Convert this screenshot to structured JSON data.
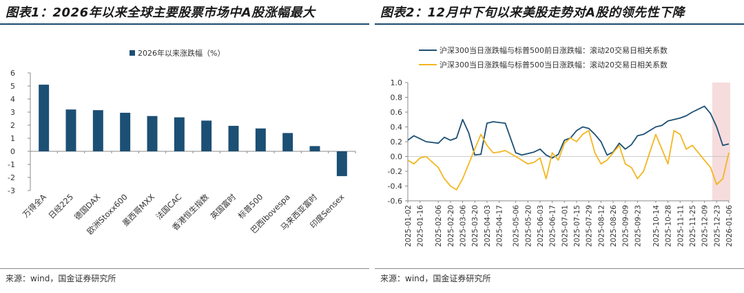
{
  "left": {
    "title": "图表1：2026年以来全球主要股票市场中A股涨幅最大",
    "source": "来源：wind，国金证券研究所",
    "chart_data": {
      "type": "bar",
      "title": "",
      "legend": {
        "label": "2026年以来涨跌幅（%）",
        "placement": "top-center"
      },
      "categories": [
        "万得全A",
        "日经225",
        "德国DAX",
        "欧洲Stoxx600",
        "墨西哥MXX",
        "法国CAC",
        "香港恒生指数",
        "英国富时",
        "标普500",
        "巴西Ibovespa",
        "马来西亚富时",
        "印度Sensex"
      ],
      "series": [
        {
          "name": "2026年以来涨跌幅（%）",
          "color": "#1c4f74",
          "values": [
            5.1,
            3.2,
            3.15,
            2.95,
            2.7,
            2.6,
            2.35,
            1.95,
            1.75,
            1.4,
            0.4,
            -1.9
          ]
        }
      ],
      "ylim": [
        -3,
        6
      ],
      "yticks": [
        "-3",
        "-2",
        "-1",
        "0",
        "1",
        "2",
        "3",
        "4",
        "5",
        "6"
      ],
      "grid": false,
      "xlabel": "",
      "ylabel": ""
    }
  },
  "right": {
    "title": "图表2：12月中下旬以来美股走势对A股的领先性下降",
    "source": "来源：wind，国金证券研究所",
    "chart_data": {
      "type": "line",
      "title": "",
      "legend_placement": "top",
      "ylim": [
        -0.6,
        1.0
      ],
      "yticks": [
        "1.0",
        "0.8",
        "0.6",
        "0.4",
        "0.2",
        "0.0",
        "-0.2",
        "-0.4",
        "-0.6"
      ],
      "xticks": [
        "2025-01-02",
        "2025-01-16",
        "2025-02-06",
        "2025-02-20",
        "2025-03-06",
        "2025-03-20",
        "2025-04-03",
        "2025-04-17",
        "2025-05-06",
        "2025-05-20",
        "2025-06-03",
        "2025-06-17",
        "2025-07-01",
        "2025-07-15",
        "2025-07-29",
        "2025-08-12",
        "2025-08-26",
        "2025-09-09",
        "2025-09-23",
        "2025-10-14",
        "2025-10-28",
        "2025-11-11",
        "2025-11-25",
        "2025-12-09",
        "2025-12-23",
        "2026-01-06"
      ],
      "highlight": {
        "from": "2025-12-18",
        "to": "2026-01-06",
        "color": "#f6dcdc"
      },
      "grid": false,
      "xlabel": "",
      "ylabel": "",
      "series": [
        {
          "name": "沪深300当日涨跌幅与标普500前日涨跌幅：滚动20交易日相关系数",
          "color": "#1c4f74",
          "x": [
            "2025-01-02",
            "2025-01-09",
            "2025-01-16",
            "2025-01-23",
            "2025-02-06",
            "2025-02-13",
            "2025-02-20",
            "2025-02-27",
            "2025-03-06",
            "2025-03-13",
            "2025-03-20",
            "2025-03-27",
            "2025-04-03",
            "2025-04-10",
            "2025-04-17",
            "2025-04-24",
            "2025-05-06",
            "2025-05-13",
            "2025-05-20",
            "2025-05-27",
            "2025-06-03",
            "2025-06-10",
            "2025-06-17",
            "2025-06-24",
            "2025-07-01",
            "2025-07-08",
            "2025-07-15",
            "2025-07-22",
            "2025-07-29",
            "2025-08-05",
            "2025-08-12",
            "2025-08-19",
            "2025-08-26",
            "2025-09-02",
            "2025-09-09",
            "2025-09-16",
            "2025-09-23",
            "2025-09-30",
            "2025-10-14",
            "2025-10-21",
            "2025-10-28",
            "2025-11-04",
            "2025-11-11",
            "2025-11-18",
            "2025-11-25",
            "2025-12-02",
            "2025-12-09",
            "2025-12-16",
            "2025-12-23",
            "2025-12-30",
            "2026-01-06"
          ],
          "values": [
            0.22,
            0.28,
            0.24,
            0.2,
            0.18,
            0.26,
            0.22,
            0.25,
            0.5,
            0.32,
            0.02,
            0.03,
            0.45,
            0.47,
            0.46,
            0.45,
            0.05,
            0.02,
            0.04,
            0.06,
            0.1,
            0.02,
            -0.02,
            0.03,
            0.22,
            0.25,
            0.35,
            0.4,
            0.38,
            0.3,
            0.2,
            0.02,
            0.06,
            0.18,
            0.1,
            0.16,
            0.28,
            0.3,
            0.4,
            0.42,
            0.48,
            0.5,
            0.52,
            0.55,
            0.6,
            0.64,
            0.68,
            0.58,
            0.4,
            0.15,
            0.17
          ]
        },
        {
          "name": "沪深300当日涨跌幅与标普500当日涨跌幅：滚动20交易日相关系数",
          "color": "#f3b61f",
          "x": [
            "2025-01-02",
            "2025-01-09",
            "2025-01-16",
            "2025-01-23",
            "2025-02-06",
            "2025-02-13",
            "2025-02-20",
            "2025-02-27",
            "2025-03-06",
            "2025-03-13",
            "2025-03-20",
            "2025-03-27",
            "2025-04-03",
            "2025-04-10",
            "2025-04-17",
            "2025-04-24",
            "2025-05-06",
            "2025-05-13",
            "2025-05-20",
            "2025-05-27",
            "2025-06-03",
            "2025-06-10",
            "2025-06-17",
            "2025-06-24",
            "2025-07-01",
            "2025-07-08",
            "2025-07-15",
            "2025-07-22",
            "2025-07-29",
            "2025-08-05",
            "2025-08-12",
            "2025-08-19",
            "2025-08-26",
            "2025-09-02",
            "2025-09-09",
            "2025-09-16",
            "2025-09-23",
            "2025-09-30",
            "2025-10-14",
            "2025-10-21",
            "2025-10-28",
            "2025-11-04",
            "2025-11-11",
            "2025-11-18",
            "2025-11-25",
            "2025-12-02",
            "2025-12-09",
            "2025-12-16",
            "2025-12-23",
            "2025-12-30",
            "2026-01-06"
          ],
          "values": [
            -0.05,
            -0.1,
            -0.02,
            0.0,
            -0.15,
            -0.3,
            -0.4,
            -0.45,
            -0.3,
            -0.1,
            0.1,
            0.3,
            0.15,
            0.05,
            0.06,
            0.08,
            0.0,
            -0.05,
            -0.1,
            -0.08,
            -0.02,
            -0.3,
            0.05,
            -0.05,
            0.18,
            0.25,
            0.2,
            0.3,
            0.35,
            0.05,
            -0.1,
            -0.05,
            0.05,
            0.15,
            -0.1,
            -0.15,
            -0.3,
            -0.2,
            0.3,
            0.1,
            -0.1,
            0.35,
            0.3,
            0.1,
            0.15,
            0.05,
            -0.05,
            -0.15,
            -0.38,
            -0.3,
            0.05
          ]
        }
      ]
    }
  }
}
